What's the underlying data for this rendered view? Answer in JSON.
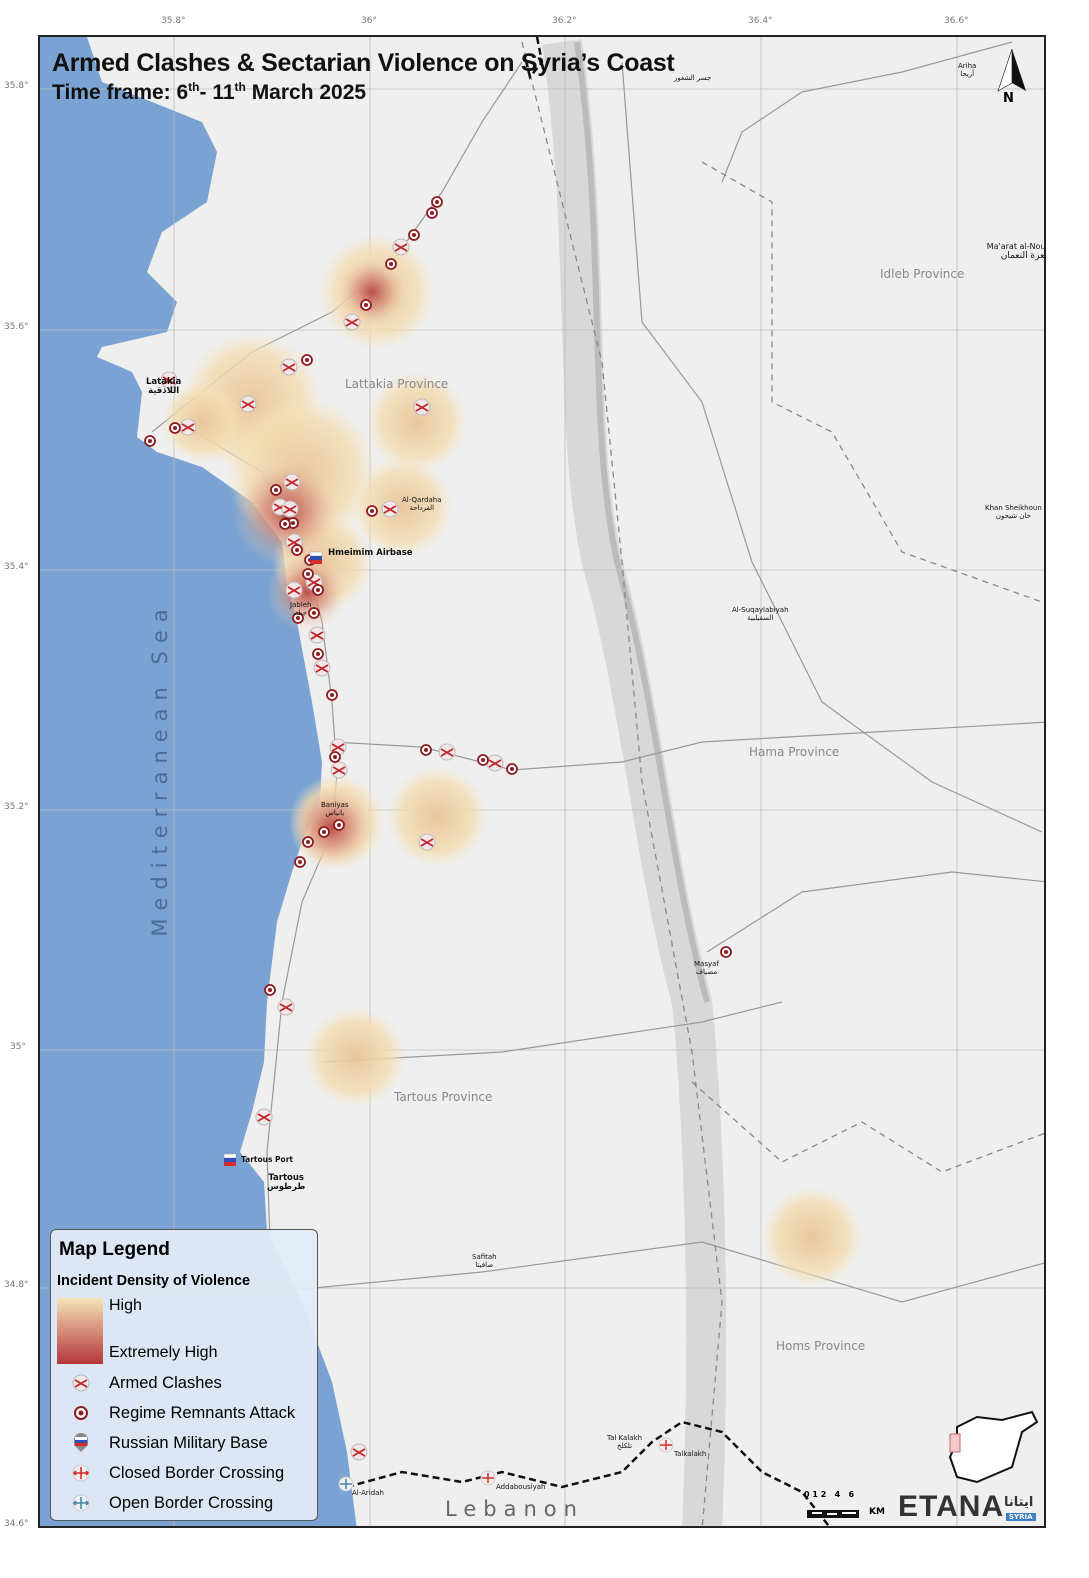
{
  "title": "Armed Clashes & Sectarian Violence on Syria’s Coast",
  "subtitle": {
    "prefix": "Time frame: 6",
    "sup1": "th",
    "mid": "- 11",
    "sup2": "th",
    "suffix": " March 2025"
  },
  "longitude_ticks": [
    "35.8°",
    "36°",
    "36.2°",
    "36.4°",
    "36.6°"
  ],
  "latitude_ticks": [
    "35.8°",
    "35.6°",
    "35.4°",
    "35.2°",
    "35°",
    "34.8°",
    "34.6°"
  ],
  "north_label": "N",
  "water": {
    "sea": "Mediterranean Sea"
  },
  "country_label": "Lebanon",
  "provinces": [
    "Idleb Province",
    "Lattakia Province",
    "Hama Province",
    "Tartous Province",
    "Homs Province"
  ],
  "places": {
    "latakia": "Latakia",
    "latakia_ar": "اللاذقية",
    "hmeimim": "Hmeimim Airbase",
    "jableh": "Jableh",
    "jableh_ar": "جبلة",
    "qardaha": "Al-Qardaha",
    "qardaha_ar": "القرداحة",
    "baniyas": "Baniyas",
    "baniyas_ar": "بانياس",
    "tartous_port": "Tartous Port",
    "tartous": "Tartous",
    "tartous_ar": "طرطوس",
    "safitah": "Safitah",
    "safitah_ar": "صافيتا",
    "masyaf": "Masyaf",
    "masyaf_ar": "مصياف",
    "suqaylabiyah": "Al-Suqaylabiyah",
    "suqaylabiyah_ar": "السقيلبية",
    "khan_sheikhoun": "Khan Sheikhoun",
    "khan_sheikhoun_ar": "خان شيخون",
    "maarat": "Ma'arat al-Nouman",
    "maarat_ar": "معرة النعمان",
    "ariha": "Ariha",
    "ariha_ar": "أريحا",
    "jisr": "جسر الشغور",
    "tal_kalakh": "Tal Kalakh",
    "tal_kalakh_ar": "تلكلخ",
    "talkalakh": "Talkalakh",
    "addabousiyah": "Addabousiyah",
    "al_aridah": "Al-Aridah"
  },
  "legend": {
    "title": "Map Legend",
    "density_title": "Incident Density of Violence",
    "density_high": "High",
    "density_extreme": "Extremely High",
    "density_colors": [
      "#f6e3b8",
      "#b3363a"
    ],
    "items": [
      {
        "icon": "armed-clash-icon",
        "label": "Armed Clashes"
      },
      {
        "icon": "regime-attack-icon",
        "label": "Regime Remnants Attack"
      },
      {
        "icon": "russian-base-icon",
        "label": "Russian Military Base"
      },
      {
        "icon": "closed-border-icon",
        "label": "Closed Border Crossing"
      },
      {
        "icon": "open-border-icon",
        "label": "Open Border Crossing"
      }
    ]
  },
  "scale_bar": {
    "ticks": "0 1 2   4   6",
    "unit": "KM"
  },
  "brand": {
    "name": "ETANA",
    "arabic": "ايتانا",
    "tag": "SYRIA"
  },
  "colors": {
    "sea": "#7aa3d3",
    "land": "#eeeeee",
    "clash": "#c0272d",
    "attack": "#8e1b1f"
  }
}
